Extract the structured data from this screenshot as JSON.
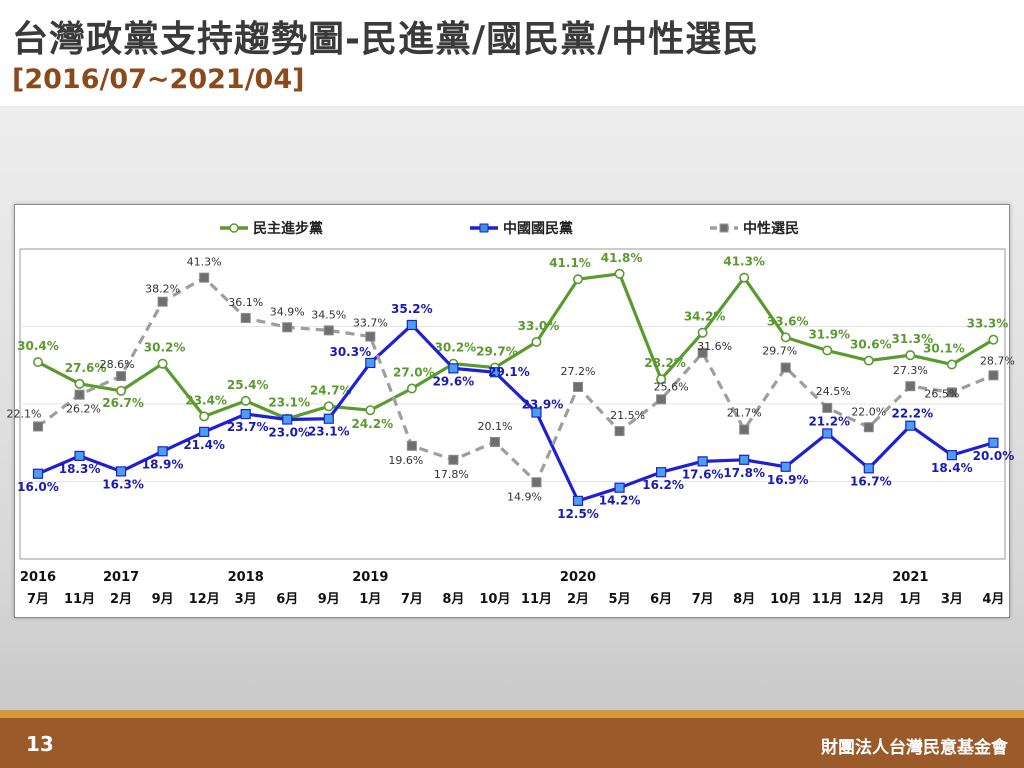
{
  "slide": {
    "title": "台灣政黨支持趨勢圖-民進黨/國民黨/中性選民",
    "subtitle": "[2016/07~2021/04]",
    "page_number": "13",
    "organization": "財團法人台灣民意基金會"
  },
  "chart_data": {
    "type": "line",
    "ylim": [
      5,
      45
    ],
    "grid": true,
    "legend_position": "top",
    "categories": [
      "7月",
      "11月",
      "2月",
      "9月",
      "12月",
      "3月",
      "6月",
      "9月",
      "1月",
      "7月",
      "8月",
      "10月",
      "11月",
      "2月",
      "5月",
      "6月",
      "7月",
      "8月",
      "10月",
      "11月",
      "12月",
      "1月",
      "3月",
      "4月"
    ],
    "year_labels": [
      {
        "year": "2016",
        "index": 0
      },
      {
        "year": "2017",
        "index": 2
      },
      {
        "year": "2018",
        "index": 5
      },
      {
        "year": "2019",
        "index": 8
      },
      {
        "year": "2020",
        "index": 13
      },
      {
        "year": "2021",
        "index": 21
      }
    ],
    "series": [
      {
        "name": "民主進步黨",
        "color": "#5a9a2e",
        "label_color": "#5a9a2e",
        "marker": "circle",
        "dashed": false,
        "values": [
          30.4,
          27.6,
          26.7,
          30.2,
          23.4,
          25.4,
          23.1,
          24.7,
          24.2,
          27.0,
          30.2,
          29.7,
          33.0,
          41.1,
          41.8,
          28.2,
          34.2,
          41.3,
          33.6,
          31.9,
          30.6,
          31.3,
          30.1,
          33.3
        ],
        "labels": [
          "30.4%",
          "27.6%",
          "26.7%",
          "30.2%",
          "23.4%",
          "25.4%",
          "23.1%",
          "24.7%",
          "24.2%",
          "27.0%",
          "30.2%",
          "29.7%",
          "33.0%",
          "41.1%",
          "41.8%",
          "28.2%",
          "34.2%",
          "41.3%",
          "33.6%",
          "31.9%",
          "30.6%",
          "31.3%",
          "30.1%",
          "33.3%"
        ]
      },
      {
        "name": "中國國民黨",
        "color": "#1f1fd6",
        "label_color": "#1a1ab4",
        "marker": "square",
        "dashed": false,
        "values": [
          16.0,
          18.3,
          16.3,
          18.9,
          21.4,
          23.7,
          23.0,
          23.1,
          30.3,
          35.2,
          29.6,
          29.1,
          23.9,
          12.5,
          14.2,
          16.2,
          17.6,
          17.8,
          16.9,
          21.2,
          16.7,
          22.2,
          18.4,
          20.0
        ],
        "labels": [
          "16.0%",
          "18.3%",
          "16.3%",
          "18.9%",
          "21.4%",
          "23.7%",
          "23.0%",
          "23.1%",
          "30.3%",
          "35.2%",
          "29.6%",
          "29.1%",
          "23.9%",
          "12.5%",
          "14.2%",
          "16.2%",
          "17.6%",
          "17.8%",
          "16.9%",
          "21.2%",
          "16.7%",
          "22.2%",
          "18.4%",
          "20.0%"
        ]
      },
      {
        "name": "中性選民",
        "color": "#9e9e9e",
        "label_color": "#333333",
        "marker": "square",
        "dashed": true,
        "values": [
          22.1,
          26.2,
          28.6,
          38.2,
          41.3,
          36.1,
          34.9,
          34.5,
          33.7,
          19.6,
          17.8,
          20.1,
          14.9,
          27.2,
          21.5,
          25.6,
          31.6,
          21.7,
          29.7,
          24.5,
          22.0,
          27.3,
          26.5,
          28.7
        ],
        "labels": [
          "22.1%",
          "26.2%",
          "28.6%",
          "38.2%",
          "41.3%",
          "36.1%",
          "34.9%",
          "34.5%",
          "33.7%",
          "19.6%",
          "17.8%",
          "20.1%",
          "14.9%",
          "27.2%",
          "21.5%",
          "25.6%",
          "31.6%",
          "21.7%",
          "29.7%",
          "24.5%",
          "22.0%",
          "27.3%",
          "26.5%",
          "28.7%"
        ]
      }
    ]
  }
}
